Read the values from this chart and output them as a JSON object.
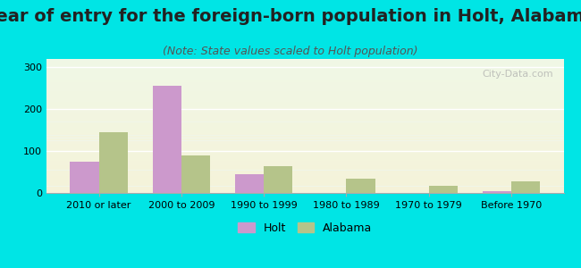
{
  "title": "Year of entry for the foreign-born population in Holt, Alabama",
  "subtitle": "(Note: State values scaled to Holt population)",
  "categories": [
    "2010 or later",
    "2000 to 2009",
    "1990 to 1999",
    "1980 to 1989",
    "1970 to 1979",
    "Before 1970"
  ],
  "holt_values": [
    75,
    255,
    45,
    0,
    0,
    5
  ],
  "alabama_values": [
    145,
    90,
    63,
    35,
    18,
    28
  ],
  "holt_color": "#cc99cc",
  "alabama_color": "#b5c48a",
  "ylim": [
    0,
    320
  ],
  "yticks": [
    0,
    100,
    200,
    300
  ],
  "bg_color": "#00e5e5",
  "plot_bg_top": "#f0f5e8",
  "plot_bg_bottom": "#e8f5e8",
  "title_fontsize": 14,
  "subtitle_fontsize": 9,
  "bar_width": 0.35,
  "legend_labels": [
    "Holt",
    "Alabama"
  ]
}
